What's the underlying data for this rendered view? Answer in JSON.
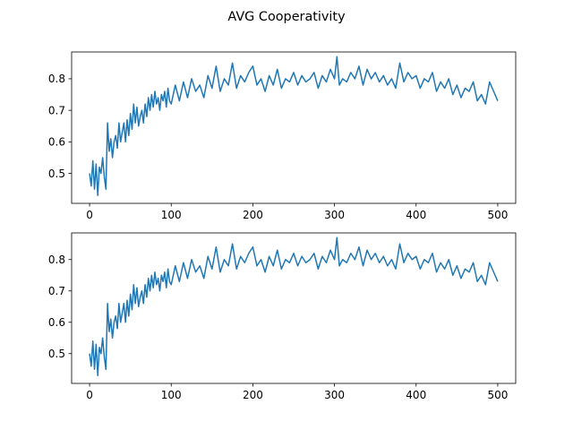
{
  "figure": {
    "suptitle": "AVG Cooperativity"
  },
  "chart_data": [
    {
      "type": "line",
      "title": "",
      "xlabel": "",
      "ylabel": "",
      "xlim": [
        -22,
        522
      ],
      "ylim": [
        0.405,
        0.885
      ],
      "xticks": [
        0,
        100,
        200,
        300,
        400,
        500
      ],
      "yticks": [
        0.5,
        0.6,
        0.7,
        0.8
      ],
      "xtick_labels": [
        "0",
        "100",
        "200",
        "300",
        "400",
        "500"
      ],
      "ytick_labels": [
        "0.5",
        "0.6",
        "0.7",
        "0.8"
      ],
      "grid": false,
      "series": [
        {
          "color": "#1f77b4",
          "x": [
            0,
            2,
            4,
            6,
            8,
            10,
            12,
            14,
            16,
            18,
            20,
            22,
            24,
            26,
            28,
            30,
            32,
            34,
            36,
            38,
            40,
            42,
            44,
            46,
            48,
            50,
            52,
            54,
            56,
            58,
            60,
            62,
            64,
            66,
            68,
            70,
            72,
            74,
            76,
            78,
            80,
            82,
            84,
            86,
            88,
            90,
            92,
            94,
            96,
            98,
            100,
            105,
            110,
            115,
            120,
            125,
            130,
            135,
            140,
            145,
            150,
            155,
            160,
            165,
            170,
            175,
            180,
            185,
            190,
            195,
            200,
            205,
            210,
            215,
            220,
            225,
            230,
            235,
            240,
            245,
            250,
            255,
            260,
            265,
            270,
            275,
            280,
            285,
            290,
            295,
            300,
            303,
            306,
            310,
            315,
            320,
            325,
            330,
            335,
            340,
            345,
            350,
            355,
            360,
            365,
            370,
            375,
            380,
            385,
            390,
            395,
            400,
            405,
            410,
            415,
            420,
            425,
            430,
            435,
            440,
            445,
            450,
            455,
            460,
            465,
            470,
            475,
            480,
            485,
            490,
            495,
            500
          ],
          "y": [
            0.5,
            0.46,
            0.54,
            0.45,
            0.53,
            0.43,
            0.52,
            0.5,
            0.55,
            0.49,
            0.45,
            0.66,
            0.57,
            0.61,
            0.55,
            0.6,
            0.62,
            0.58,
            0.66,
            0.6,
            0.63,
            0.66,
            0.6,
            0.67,
            0.62,
            0.69,
            0.64,
            0.72,
            0.66,
            0.71,
            0.65,
            0.68,
            0.7,
            0.66,
            0.72,
            0.68,
            0.74,
            0.7,
            0.75,
            0.71,
            0.76,
            0.72,
            0.74,
            0.7,
            0.75,
            0.73,
            0.76,
            0.71,
            0.77,
            0.73,
            0.72,
            0.78,
            0.73,
            0.79,
            0.74,
            0.8,
            0.76,
            0.78,
            0.74,
            0.81,
            0.77,
            0.84,
            0.76,
            0.8,
            0.78,
            0.85,
            0.77,
            0.81,
            0.79,
            0.82,
            0.84,
            0.78,
            0.8,
            0.76,
            0.81,
            0.78,
            0.83,
            0.77,
            0.8,
            0.79,
            0.82,
            0.78,
            0.81,
            0.79,
            0.8,
            0.82,
            0.77,
            0.81,
            0.79,
            0.83,
            0.8,
            0.87,
            0.78,
            0.8,
            0.79,
            0.82,
            0.8,
            0.84,
            0.78,
            0.83,
            0.8,
            0.82,
            0.79,
            0.81,
            0.78,
            0.8,
            0.77,
            0.85,
            0.79,
            0.82,
            0.8,
            0.81,
            0.77,
            0.8,
            0.79,
            0.82,
            0.76,
            0.79,
            0.77,
            0.8,
            0.75,
            0.78,
            0.74,
            0.77,
            0.76,
            0.79,
            0.73,
            0.75,
            0.72,
            0.79,
            0.76,
            0.73
          ]
        }
      ]
    },
    {
      "type": "line",
      "title": "",
      "xlabel": "",
      "ylabel": "",
      "xlim": [
        -22,
        522
      ],
      "ylim": [
        0.405,
        0.885
      ],
      "xticks": [
        0,
        100,
        200,
        300,
        400,
        500
      ],
      "yticks": [
        0.5,
        0.6,
        0.7,
        0.8
      ],
      "xtick_labels": [
        "0",
        "100",
        "200",
        "300",
        "400",
        "500"
      ],
      "ytick_labels": [
        "0.5",
        "0.6",
        "0.7",
        "0.8"
      ],
      "grid": false,
      "series": [
        {
          "color": "#1f77b4",
          "x": [
            0,
            2,
            4,
            6,
            8,
            10,
            12,
            14,
            16,
            18,
            20,
            22,
            24,
            26,
            28,
            30,
            32,
            34,
            36,
            38,
            40,
            42,
            44,
            46,
            48,
            50,
            52,
            54,
            56,
            58,
            60,
            62,
            64,
            66,
            68,
            70,
            72,
            74,
            76,
            78,
            80,
            82,
            84,
            86,
            88,
            90,
            92,
            94,
            96,
            98,
            100,
            105,
            110,
            115,
            120,
            125,
            130,
            135,
            140,
            145,
            150,
            155,
            160,
            165,
            170,
            175,
            180,
            185,
            190,
            195,
            200,
            205,
            210,
            215,
            220,
            225,
            230,
            235,
            240,
            245,
            250,
            255,
            260,
            265,
            270,
            275,
            280,
            285,
            290,
            295,
            300,
            303,
            306,
            310,
            315,
            320,
            325,
            330,
            335,
            340,
            345,
            350,
            355,
            360,
            365,
            370,
            375,
            380,
            385,
            390,
            395,
            400,
            405,
            410,
            415,
            420,
            425,
            430,
            435,
            440,
            445,
            450,
            455,
            460,
            465,
            470,
            475,
            480,
            485,
            490,
            495,
            500
          ],
          "y": [
            0.5,
            0.46,
            0.54,
            0.45,
            0.53,
            0.43,
            0.52,
            0.5,
            0.55,
            0.49,
            0.45,
            0.66,
            0.57,
            0.61,
            0.55,
            0.6,
            0.62,
            0.58,
            0.66,
            0.6,
            0.63,
            0.66,
            0.6,
            0.67,
            0.62,
            0.69,
            0.64,
            0.72,
            0.66,
            0.71,
            0.65,
            0.68,
            0.7,
            0.66,
            0.72,
            0.68,
            0.74,
            0.7,
            0.75,
            0.71,
            0.76,
            0.72,
            0.74,
            0.7,
            0.75,
            0.73,
            0.76,
            0.71,
            0.77,
            0.73,
            0.72,
            0.78,
            0.73,
            0.79,
            0.74,
            0.8,
            0.76,
            0.78,
            0.74,
            0.81,
            0.77,
            0.84,
            0.76,
            0.8,
            0.78,
            0.85,
            0.77,
            0.81,
            0.79,
            0.82,
            0.84,
            0.78,
            0.8,
            0.76,
            0.81,
            0.78,
            0.83,
            0.77,
            0.8,
            0.79,
            0.82,
            0.78,
            0.81,
            0.79,
            0.8,
            0.82,
            0.77,
            0.81,
            0.79,
            0.83,
            0.8,
            0.87,
            0.78,
            0.8,
            0.79,
            0.82,
            0.8,
            0.84,
            0.78,
            0.83,
            0.8,
            0.82,
            0.79,
            0.81,
            0.78,
            0.8,
            0.77,
            0.85,
            0.79,
            0.82,
            0.8,
            0.81,
            0.77,
            0.8,
            0.79,
            0.82,
            0.76,
            0.79,
            0.77,
            0.8,
            0.75,
            0.78,
            0.74,
            0.77,
            0.76,
            0.79,
            0.73,
            0.75,
            0.72,
            0.79,
            0.76,
            0.73
          ]
        }
      ]
    }
  ]
}
